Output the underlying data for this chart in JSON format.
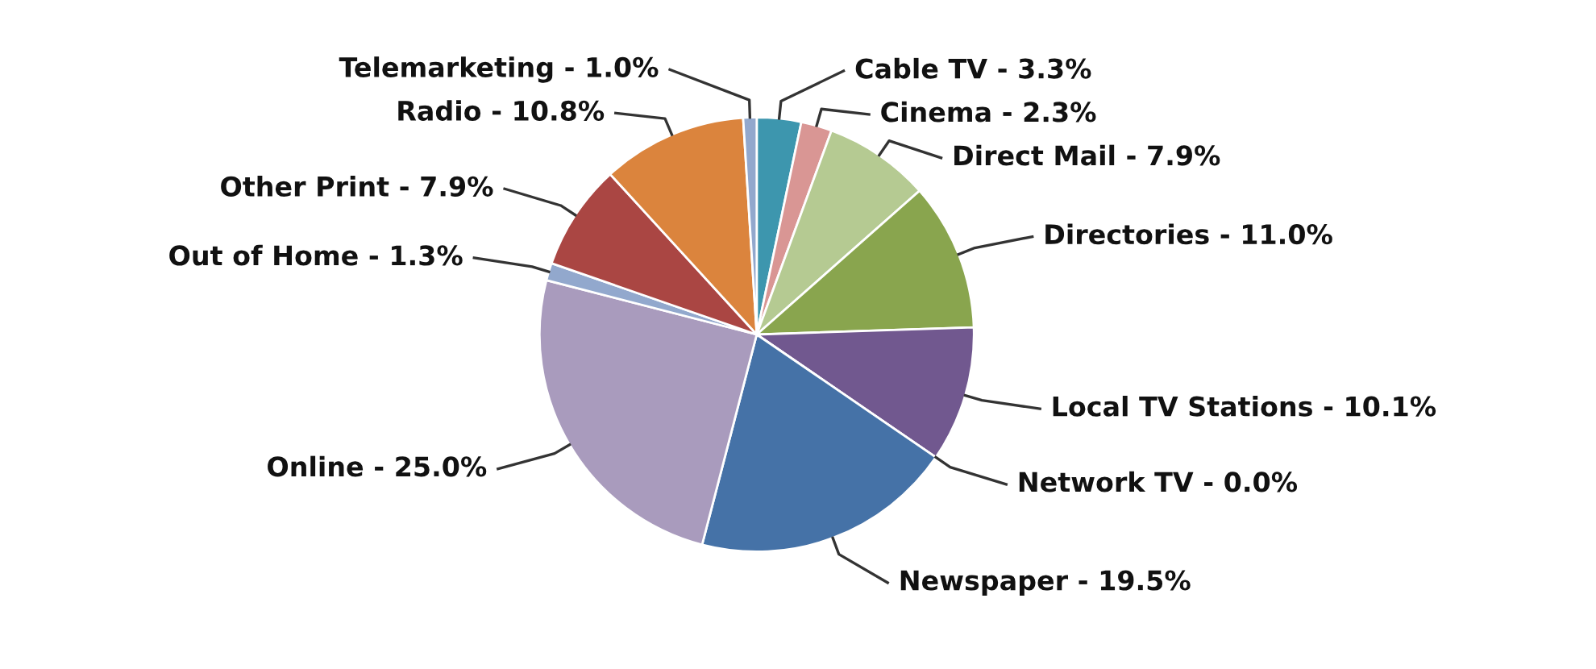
{
  "chart_data": {
    "type": "pie",
    "categories": [
      "Cable TV - 3.3%",
      "Cinema - 2.3%",
      "Direct Mail - 7.9%",
      "Directories - 11.0%",
      "Local TV Stations - 10.1%",
      "Network TV - 0.0%",
      "Newspaper - 19.5%",
      "Online - 25.0%",
      "Out of Home - 1.3%",
      "Other Print - 7.9%",
      "Radio - 10.8%",
      "Telemarketing - 1.0%"
    ],
    "values": [
      3.3,
      2.3,
      7.9,
      11.0,
      10.1,
      0.0,
      19.5,
      25.0,
      1.3,
      7.9,
      10.8,
      1.0
    ],
    "colors": [
      "#3d96ae",
      "#d99694",
      "#b5ca92",
      "#89a54e",
      "#71588f",
      "#80699b",
      "#4572a7",
      "#a99bbd",
      "#92a8cd",
      "#aa4643",
      "#db843d",
      "#92a8cd"
    ]
  }
}
